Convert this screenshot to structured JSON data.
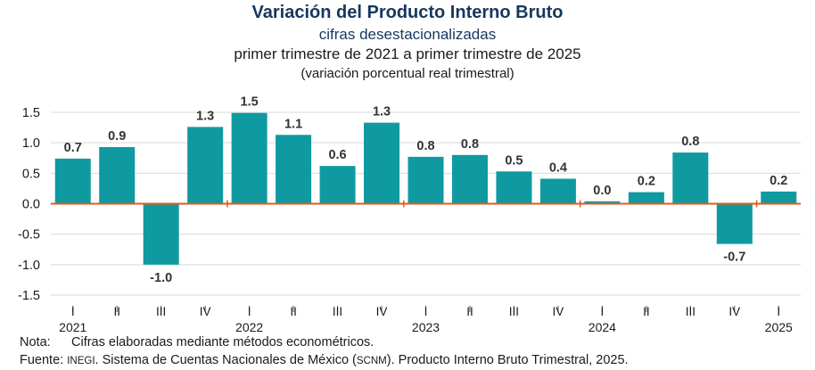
{
  "chart_data": {
    "type": "bar",
    "title": "Variación del Producto Interno Bruto",
    "subtitle": "cifras desestacionalizadas",
    "range_text": "primer trimestre de 2021 a primer trimestre de 2025",
    "units_text": "(variación porcentual real trimestral)",
    "categories": [
      "2021 I",
      "2021 II",
      "2021 III",
      "2021 IV",
      "2022 I",
      "2022 II",
      "2022 III",
      "2022 IV",
      "2023 I",
      "2023 II",
      "2023 III",
      "2023 IV",
      "2024 I",
      "2024 II",
      "2024 III",
      "2024 IV",
      "2025 I"
    ],
    "quarter_labels": [
      "I",
      "II",
      "III",
      "IV",
      "I",
      "II",
      "III",
      "IV",
      "I",
      "II",
      "III",
      "IV",
      "I",
      "II",
      "III",
      "IV",
      "I"
    ],
    "years": [
      {
        "label": "2021",
        "index": 0
      },
      {
        "label": "2022",
        "index": 4
      },
      {
        "label": "2023",
        "index": 8
      },
      {
        "label": "2024",
        "index": 12
      },
      {
        "label": "2025",
        "index": 16
      }
    ],
    "values": [
      0.74,
      0.93,
      -1.0,
      1.26,
      1.49,
      1.13,
      0.62,
      1.33,
      0.77,
      0.8,
      0.53,
      0.41,
      0.04,
      0.19,
      0.84,
      -0.66,
      0.2
    ],
    "data_labels": [
      "0.7",
      "0.9",
      "-1.0",
      "1.3",
      "1.5",
      "1.1",
      "0.6",
      "1.3",
      "0.8",
      "0.8",
      "0.5",
      "0.4",
      "0.0",
      "0.2",
      "0.8",
      "-0.7",
      "0.2"
    ],
    "yticks": [
      "1.5",
      "1.0",
      "0.5",
      "0.0",
      "-0.5",
      "-1.0",
      "-1.5"
    ],
    "ylim": [
      -1.5,
      1.5
    ],
    "grid": true,
    "colors": {
      "bar": "#0e9aa0",
      "zero_line": "#e05a1e",
      "grid": "#d9d9d9",
      "title": "#17375e"
    }
  },
  "footer": {
    "note_label": "Nota:",
    "note_text": "Cifras elaboradas mediante métodos econométricos.",
    "source_label": "Fuente:",
    "source_inegi": "INEGI",
    "source_mid": ". Sistema de Cuentas Nacionales de México (",
    "source_scnm": "SCNM",
    "source_end": "). Producto Interno Bruto Trimestral, 2025."
  }
}
